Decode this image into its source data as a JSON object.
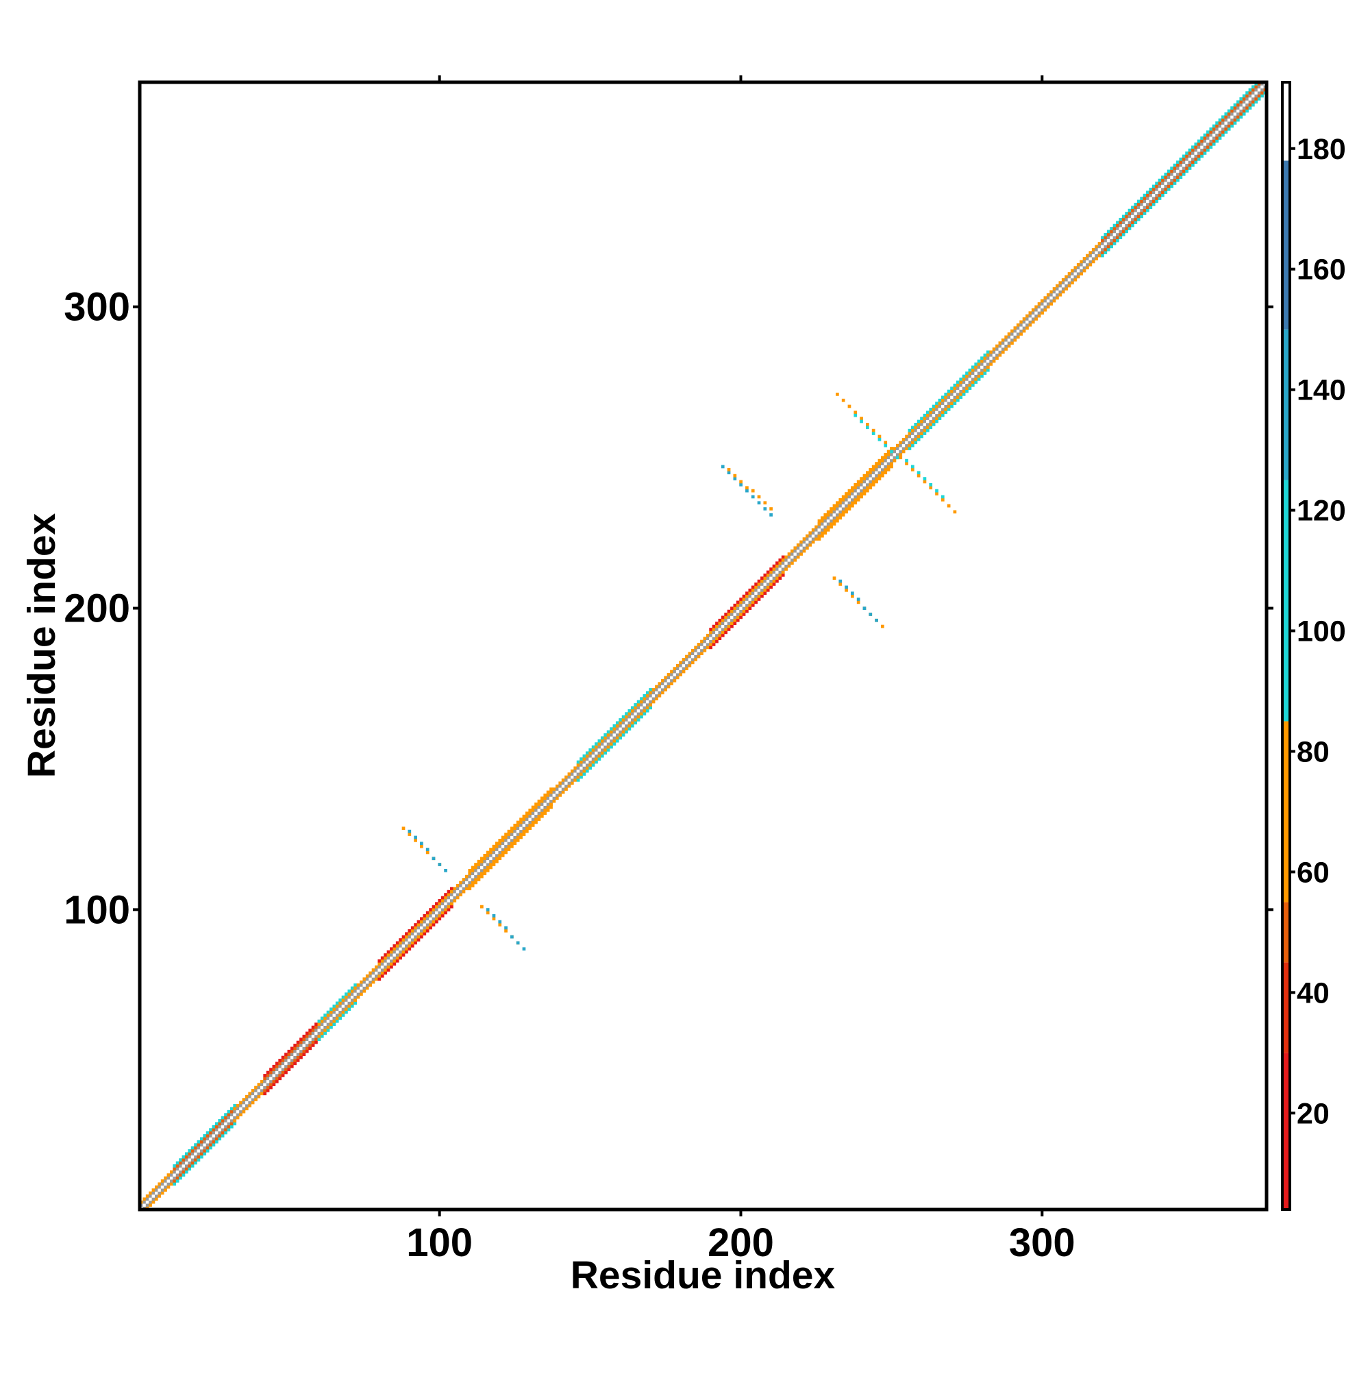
{
  "chart_data": {
    "type": "heatmap",
    "title": "",
    "xlabel": "Residue index",
    "ylabel": "Residue index",
    "xlim": [
      1,
      374
    ],
    "ylim": [
      1,
      374
    ],
    "xticks": [
      100,
      200,
      300
    ],
    "yticks": [
      100,
      200,
      300
    ],
    "grid": false,
    "colorbar": {
      "range": [
        4,
        191
      ],
      "ticks": [
        20,
        40,
        60,
        80,
        100,
        120,
        140,
        160,
        180
      ],
      "bands": [
        {
          "from": 4,
          "to": 30,
          "color": "#e41a1c"
        },
        {
          "from": 30,
          "to": 45,
          "color": "#e3300f"
        },
        {
          "from": 45,
          "to": 55,
          "color": "#e8600c"
        },
        {
          "from": 55,
          "to": 85,
          "color": "#ff9900"
        },
        {
          "from": 85,
          "to": 125,
          "color": "#1fd6d6"
        },
        {
          "from": 125,
          "to": 150,
          "color": "#2aa7c9"
        },
        {
          "from": 150,
          "to": 178,
          "color": "#3d7ab0"
        },
        {
          "from": 178,
          "to": 191,
          "color": "#ffffff"
        }
      ]
    },
    "colors": {
      "diag": "#9a9a9a",
      "orange": "#ff9900",
      "darkorange": "#e8600c",
      "red": "#e41a1c",
      "cyan": "#1fd6d6",
      "blue": "#2aa7c9"
    },
    "diagonal": {
      "segments": [
        {
          "start": 1,
          "end": 12,
          "halfwidth": 2
        },
        {
          "start": 12,
          "end": 32,
          "halfwidth": 3
        },
        {
          "start": 32,
          "end": 42,
          "halfwidth": 2
        },
        {
          "start": 42,
          "end": 60,
          "halfwidth": 3
        },
        {
          "start": 60,
          "end": 72,
          "halfwidth": 3
        },
        {
          "start": 72,
          "end": 80,
          "halfwidth": 2
        },
        {
          "start": 80,
          "end": 104,
          "halfwidth": 3
        },
        {
          "start": 104,
          "end": 110,
          "halfwidth": 2
        },
        {
          "start": 110,
          "end": 137,
          "halfwidth": 3
        },
        {
          "start": 137,
          "end": 146,
          "halfwidth": 2
        },
        {
          "start": 146,
          "end": 170,
          "halfwidth": 3
        },
        {
          "start": 170,
          "end": 190,
          "halfwidth": 2
        },
        {
          "start": 190,
          "end": 214,
          "halfwidth": 3
        },
        {
          "start": 214,
          "end": 226,
          "halfwidth": 2
        },
        {
          "start": 226,
          "end": 250,
          "halfwidth": 3
        },
        {
          "start": 250,
          "end": 256,
          "halfwidth": 2
        },
        {
          "start": 256,
          "end": 282,
          "halfwidth": 3
        },
        {
          "start": 282,
          "end": 300,
          "halfwidth": 2
        },
        {
          "start": 300,
          "end": 320,
          "halfwidth": 2
        },
        {
          "start": 320,
          "end": 374,
          "halfwidth": 3
        }
      ]
    },
    "offdiag_contacts": [
      {
        "x": [
          88,
          101
        ],
        "y": [
          127,
          114
        ],
        "color": "orange"
      },
      {
        "x": [
          90,
          102
        ],
        "y": [
          126,
          113
        ],
        "color": "blue"
      },
      {
        "x": [
          114,
          127
        ],
        "y": [
          101,
          88
        ],
        "color": "orange"
      },
      {
        "x": [
          116,
          128
        ],
        "y": [
          100,
          87
        ],
        "color": "blue"
      },
      {
        "x": [
          194,
          210
        ],
        "y": [
          247,
          231
        ],
        "color": "blue"
      },
      {
        "x": [
          196,
          211
        ],
        "y": [
          246,
          232
        ],
        "color": "orange"
      },
      {
        "x": [
          231,
          247
        ],
        "y": [
          210,
          194
        ],
        "color": "orange"
      },
      {
        "x": [
          233,
          246
        ],
        "y": [
          209,
          195
        ],
        "color": "blue"
      },
      {
        "x": [
          232,
          250
        ],
        "y": [
          271,
          253
        ],
        "color": "orange"
      },
      {
        "x": [
          238,
          252
        ],
        "y": [
          264,
          250
        ],
        "color": "cyan"
      },
      {
        "x": [
          253,
          271
        ],
        "y": [
          250,
          232
        ],
        "color": "orange"
      },
      {
        "x": [
          255,
          268
        ],
        "y": [
          249,
          236
        ],
        "color": "cyan"
      }
    ]
  }
}
